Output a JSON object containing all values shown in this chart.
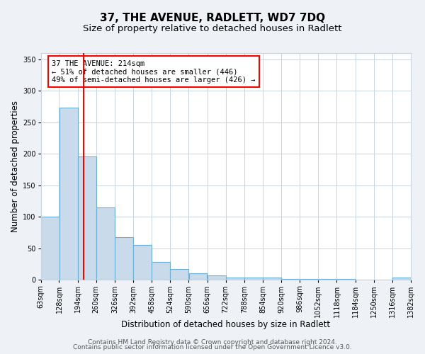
{
  "title": "37, THE AVENUE, RADLETT, WD7 7DQ",
  "subtitle": "Size of property relative to detached houses in Radlett",
  "xlabel": "Distribution of detached houses by size in Radlett",
  "ylabel": "Number of detached properties",
  "bar_left_edges": [
    63,
    128,
    194,
    260,
    326,
    392,
    458,
    524,
    590,
    656,
    722,
    788,
    854,
    920,
    986,
    1052,
    1118,
    1184,
    1250,
    1316
  ],
  "bar_heights": [
    100,
    273,
    196,
    115,
    68,
    55,
    29,
    17,
    10,
    7,
    4,
    4,
    4,
    1,
    1,
    1,
    1,
    0,
    0,
    4
  ],
  "bin_width": 66,
  "bar_color": "#c9daea",
  "bar_edge_color": "#6aaed6",
  "reference_line_x": 214,
  "ylim": [
    0,
    360
  ],
  "yticks": [
    0,
    50,
    100,
    150,
    200,
    250,
    300,
    350
  ],
  "tick_labels": [
    "63sqm",
    "128sqm",
    "194sqm",
    "260sqm",
    "326sqm",
    "392sqm",
    "458sqm",
    "524sqm",
    "590sqm",
    "656sqm",
    "722sqm",
    "788sqm",
    "854sqm",
    "920sqm",
    "986sqm",
    "1052sqm",
    "1118sqm",
    "1184sqm",
    "1250sqm",
    "1316sqm",
    "1382sqm"
  ],
  "annotation_title": "37 THE AVENUE: 214sqm",
  "annotation_line1": "← 51% of detached houses are smaller (446)",
  "annotation_line2": "49% of semi-detached houses are larger (426) →",
  "footer_line1": "Contains HM Land Registry data © Crown copyright and database right 2024.",
  "footer_line2": "Contains public sector information licensed under the Open Government Licence v3.0.",
  "fig_background": "#eef2f7",
  "plot_background": "#ffffff",
  "grid_color": "#c8d4de",
  "title_fontsize": 11,
  "subtitle_fontsize": 9.5,
  "axis_label_fontsize": 8.5,
  "tick_fontsize": 7,
  "footer_fontsize": 6.5
}
